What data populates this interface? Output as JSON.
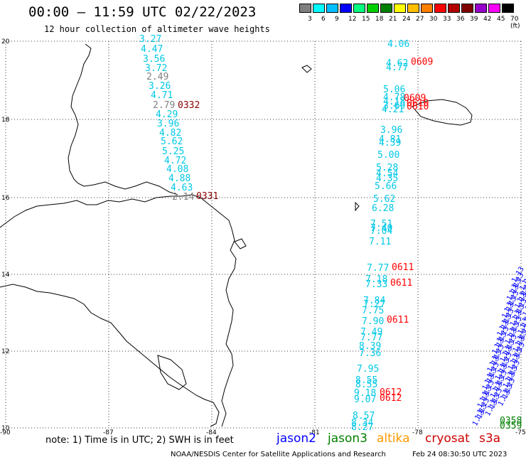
{
  "header": {
    "title": "00:00 – 11:59 UTC 02/22/2023",
    "subtitle": "12 hour collection of altimeter wave heights"
  },
  "legend": {
    "labels": [
      "3",
      "6",
      "9",
      "12",
      "15",
      "18",
      "21",
      "24",
      "27",
      "30",
      "33",
      "36",
      "39",
      "42",
      "45",
      "70 (ft)"
    ],
    "colors": [
      "#7f7f7f",
      "#00ffff",
      "#00bfff",
      "#0000ff",
      "#00ff7f",
      "#00d000",
      "#008000",
      "#ffff00",
      "#ffbf00",
      "#ff7f00",
      "#ff0000",
      "#b00000",
      "#7f0000",
      "#9900cc",
      "#ff00ff",
      "#000000"
    ]
  },
  "axes": {
    "lon_labels": [
      "-90",
      "-87",
      "-84",
      "-81",
      "-78",
      "-75"
    ],
    "lat_labels": [
      "20",
      "18",
      "16",
      "14",
      "12",
      "10"
    ]
  },
  "colors": {
    "cyan": "#00c8e6",
    "gray": "#808080",
    "red": "#ff0000",
    "darkred": "#8b0000",
    "blue": "#0000ff",
    "green": "#008000"
  },
  "tracks": {
    "west_track": {
      "values": [
        "3.27",
        "4.47",
        "3.56",
        "3.72",
        "2.49",
        "3.26",
        "4.71",
        "2.79",
        "4.29",
        "3.96",
        "4.82",
        "5.62",
        "5.25",
        "4.72",
        "4.08",
        "4.88",
        "4.63",
        "2.14"
      ],
      "times": [
        {
          "label": "0332",
          "color": "darkred"
        },
        {
          "label": "0331",
          "color": "darkred"
        }
      ]
    },
    "east_track": {
      "values": [
        "4.06",
        "4.62",
        "4.77",
        "5.06",
        "4.78",
        "4.18",
        "3.69",
        "4.21",
        "3.96",
        "4.81",
        "4.39",
        "5.00",
        "5.28",
        "4.54",
        "4.35",
        "5.66",
        "5.62",
        "6.28",
        "7.51",
        "7.40",
        "7.04",
        "7.11",
        "7.77",
        "7.18",
        "7.33",
        "7.84",
        "7.27",
        "7.75",
        "7.90",
        "7.49",
        "7.77",
        "8.39",
        "7.36",
        "7.95",
        "8.55",
        "8.55",
        "9.18",
        "9.07",
        "8.57",
        "8.34",
        "8.27"
      ],
      "times": [
        {
          "label": "0609",
          "color": "red"
        },
        {
          "label": "0609",
          "color": "red"
        },
        {
          "label": "0610",
          "color": "red"
        },
        {
          "label": "0610",
          "color": "red"
        },
        {
          "label": "0611",
          "color": "red"
        },
        {
          "label": "0611",
          "color": "red"
        },
        {
          "label": "0611",
          "color": "red"
        },
        {
          "label": "0612",
          "color": "red"
        },
        {
          "label": "0612",
          "color": "red"
        }
      ]
    },
    "se_track": {
      "times": [
        {
          "label": "0358",
          "color": "green"
        },
        {
          "label": "0359",
          "color": "green"
        }
      ]
    }
  },
  "footer": {
    "note": "note: 1) Time is in UTC; 2) SWH is in feet",
    "satellites": [
      {
        "name": "jason2",
        "color": "#0000ff"
      },
      {
        "name": "jason3",
        "color": "#008000"
      },
      {
        "name": "altika",
        "color": "#ff9900"
      },
      {
        "name": "cryosat",
        "color": "#cc0000"
      },
      {
        "name": "s3a",
        "color": "#cc0000"
      }
    ],
    "credit": "NOAA/NESDIS Center for Satellite Applications and Research",
    "timestamp": "Feb 24 08:30:50 UTC 2023"
  }
}
